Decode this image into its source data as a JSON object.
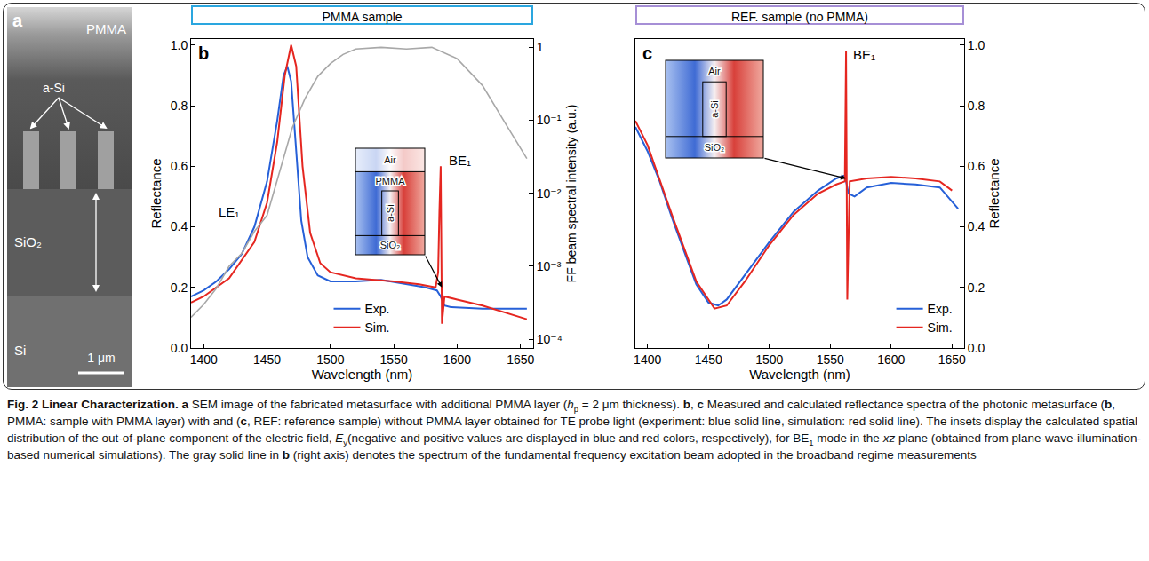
{
  "figure": {
    "panel_a": {
      "panel_label": "a",
      "labels": [
        "PMMA",
        "a-Si",
        "SiO₂",
        "Si"
      ],
      "scale_bar": "1 μm"
    },
    "caption": [
      {
        "text": "Fig. 2 Linear Characterization.",
        "style": "bold"
      },
      {
        "text": " "
      },
      {
        "text": "a",
        "style": "bold"
      },
      {
        "text": " SEM image of the fabricated metasurface with additional PMMA layer ("
      },
      {
        "text": "h",
        "style": "italic"
      },
      {
        "text": "p",
        "style": "sub"
      },
      {
        "text": " = 2 μm thickness). "
      },
      {
        "text": "b",
        "style": "bold"
      },
      {
        "text": ", "
      },
      {
        "text": "c",
        "style": "bold"
      },
      {
        "text": " Measured and calculated reflectance spectra of the photonic metasurface ("
      },
      {
        "text": "b",
        "style": "bold"
      },
      {
        "text": ", PMMA: sample with PMMA layer) with and ("
      },
      {
        "text": "c",
        "style": "bold"
      },
      {
        "text": ", REF: reference sample) without PMMA layer obtained for TE probe light (experiment: blue solid line, simulation: red solid line). The insets display the calculated spatial distribution of the out-of-plane component of the electric field, "
      },
      {
        "text": "E",
        "style": "italic"
      },
      {
        "text": "y",
        "style": "sub"
      },
      {
        "text": "(negative and positive values are displayed in blue and red colors, respectively), for BE"
      },
      {
        "text": "1",
        "style": "sub"
      },
      {
        "text": " mode in the "
      },
      {
        "text": "xz",
        "style": "italic"
      },
      {
        "text": " plane (obtained from plane-wave-illumination-based numerical simulations). The gray solid line in "
      },
      {
        "text": "b",
        "style": "bold"
      },
      {
        "text": " (right axis) denotes the spectrum of the fundamental frequency excitation beam adopted in the broadband regime measurements"
      }
    ]
  },
  "chart_data": [
    {
      "type": "line",
      "panel_label": "b",
      "title": "PMMA sample",
      "xlabel": "Wavelength (nm)",
      "ylabel": "Reflectance",
      "y2label": "FF beam spectral intensity (a.u.)",
      "xlim": [
        1390,
        1660
      ],
      "xticks": [
        1400,
        1450,
        1500,
        1550,
        1600,
        1650
      ],
      "ylim": [
        0,
        1.02
      ],
      "yticks": [
        {
          "value": 0,
          "label": "0.0"
        },
        0.2,
        0.4,
        0.6,
        0.8,
        {
          "value": 1,
          "label": "1.0"
        }
      ],
      "y2lim": [
        7.6e-05,
        1.3
      ],
      "y2ticks": [
        {
          "value": 0.0001,
          "label": "10⁻⁴"
        },
        {
          "value": 0.001,
          "label": "10⁻³"
        },
        {
          "value": 0.01,
          "label": "10⁻²"
        },
        {
          "value": 0.1,
          "label": "10⁻¹"
        },
        1
      ],
      "log": "y2",
      "grid": false,
      "legend": "bottom",
      "series": [
        {
          "name": "Exp.",
          "color": "#2660d8",
          "x": [
            1390,
            1400,
            1410,
            1420,
            1430,
            1440,
            1450,
            1458,
            1463,
            1466,
            1469,
            1473,
            1477,
            1482,
            1490,
            1500,
            1520,
            1540,
            1560,
            1575,
            1584,
            1587,
            1590,
            1595,
            1620,
            1655
          ],
          "values": [
            0.17,
            0.19,
            0.22,
            0.26,
            0.31,
            0.4,
            0.55,
            0.75,
            0.9,
            0.93,
            0.88,
            0.65,
            0.42,
            0.3,
            0.24,
            0.22,
            0.22,
            0.225,
            0.21,
            0.2,
            0.19,
            0.17,
            0.14,
            0.135,
            0.13,
            0.13
          ]
        },
        {
          "name": "Sim.",
          "color": "#e52620",
          "x": [
            1390,
            1400,
            1420,
            1440,
            1450,
            1458,
            1464,
            1469,
            1473,
            1478,
            1484,
            1492,
            1500,
            1520,
            1550,
            1570,
            1583,
            1585,
            1586,
            1587,
            1588,
            1590,
            1600,
            1620,
            1655
          ],
          "values": [
            0.15,
            0.17,
            0.23,
            0.35,
            0.48,
            0.68,
            0.9,
            1.0,
            0.93,
            0.6,
            0.38,
            0.28,
            0.25,
            0.23,
            0.22,
            0.21,
            0.2,
            0.25,
            0.45,
            0.6,
            0.08,
            0.17,
            0.16,
            0.14,
            0.095
          ]
        },
        {
          "color": "#a8a8a8",
          "axis": "y2",
          "x": [
            1390,
            1400,
            1410,
            1420,
            1430,
            1440,
            1450,
            1460,
            1470,
            1480,
            1490,
            1500,
            1510,
            1520,
            1540,
            1560,
            1580,
            1600,
            1620,
            1640,
            1655
          ],
          "values": [
            0.0002,
            0.0003,
            0.0005,
            0.001,
            0.0015,
            0.003,
            0.005,
            0.02,
            0.08,
            0.2,
            0.4,
            0.6,
            0.8,
            0.95,
            1.0,
            0.95,
            1.0,
            0.7,
            0.3,
            0.08,
            0.03
          ]
        }
      ],
      "annotations": [
        {
          "text": "LE₁",
          "x": 1420,
          "y": 0.45
        },
        {
          "text": "BE₁",
          "x": 1602,
          "y": 0.62
        }
      ],
      "inset": {
        "labels": [
          "Air",
          "PMMA",
          "a-Si",
          "SiO₂"
        ],
        "points_to": {
          "x": 1588,
          "y": 0.2
        }
      }
    },
    {
      "type": "line",
      "panel_label": "c",
      "title": "REF. sample (no PMMA)",
      "xlabel": "Wavelength (nm)",
      "ylabel": "Reflectance",
      "xlim": [
        1390,
        1660
      ],
      "xticks": [
        1400,
        1450,
        1500,
        1550,
        1600,
        1650
      ],
      "ylim": [
        0,
        1.02
      ],
      "yticks": [
        {
          "value": 0,
          "label": "0.0"
        },
        0.2,
        0.4,
        0.6,
        0.8,
        {
          "value": 1,
          "label": "1.0"
        }
      ],
      "grid": false,
      "legend": "bottom right",
      "series": [
        {
          "name": "Exp.",
          "color": "#2660d8",
          "x": [
            1390,
            1400,
            1410,
            1420,
            1430,
            1440,
            1450,
            1458,
            1465,
            1480,
            1500,
            1520,
            1540,
            1555,
            1562,
            1565,
            1570,
            1580,
            1600,
            1620,
            1640,
            1655
          ],
          "values": [
            0.73,
            0.65,
            0.55,
            0.43,
            0.32,
            0.21,
            0.15,
            0.14,
            0.16,
            0.24,
            0.35,
            0.45,
            0.52,
            0.56,
            0.57,
            0.51,
            0.5,
            0.53,
            0.545,
            0.54,
            0.53,
            0.46
          ]
        },
        {
          "name": "Sim.",
          "color": "#e52620",
          "x": [
            1390,
            1400,
            1420,
            1440,
            1455,
            1465,
            1480,
            1500,
            1520,
            1540,
            1555,
            1562,
            1563,
            1564,
            1566,
            1580,
            1600,
            1620,
            1640,
            1650
          ],
          "values": [
            0.75,
            0.67,
            0.44,
            0.22,
            0.13,
            0.14,
            0.22,
            0.34,
            0.44,
            0.51,
            0.54,
            0.55,
            0.98,
            0.16,
            0.55,
            0.56,
            0.565,
            0.56,
            0.55,
            0.52
          ]
        }
      ],
      "annotations": [
        {
          "text": "BE₁",
          "x": 1578,
          "y": 0.97
        }
      ],
      "inset": {
        "labels": [
          "Air",
          "a-Si",
          "SiO₂"
        ],
        "points_to": {
          "x": 1563,
          "y": 0.56
        }
      }
    }
  ]
}
